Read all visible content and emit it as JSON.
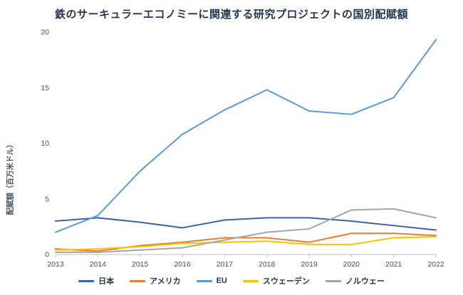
{
  "colors": {
    "background": "#ffffff",
    "title_text": "#24364f",
    "axis_text": "#44546A",
    "axis_line": "#bfbfbf"
  },
  "chart_data": {
    "type": "line",
    "title": "鉄のサーキュラーエコノミーに関連する研究プロジェクトの国別配賦額",
    "ylabel": "配賦額（百万米ドル）",
    "xlabel": "",
    "categories": [
      "2013",
      "2014",
      "2015",
      "2016",
      "2017",
      "2018",
      "2019",
      "2020",
      "2021",
      "2022"
    ],
    "ylim": [
      0,
      20
    ],
    "yticks": [
      0,
      5,
      10,
      15,
      20
    ],
    "grid": false,
    "legend_position": "bottom",
    "series": [
      {
        "name": "日本",
        "color": "#3a62ad",
        "values": [
          3.0,
          3.3,
          2.9,
          2.4,
          3.1,
          3.3,
          3.3,
          3.0,
          2.6,
          2.2
        ]
      },
      {
        "name": "アメリカ",
        "color": "#ED7D31",
        "values": [
          0.5,
          0.3,
          0.8,
          1.1,
          1.5,
          1.5,
          1.1,
          1.9,
          1.9,
          1.7
        ]
      },
      {
        "name": "EU",
        "color": "#5B9BD5",
        "values": [
          2.0,
          3.5,
          7.5,
          10.8,
          13.0,
          14.8,
          12.9,
          12.6,
          14.1,
          19.3
        ]
      },
      {
        "name": "スウェーデン",
        "color": "#FFC000",
        "values": [
          0.4,
          0.5,
          0.7,
          1.0,
          1.1,
          1.2,
          0.9,
          0.9,
          1.5,
          1.6
        ]
      },
      {
        "name": "ノルウェー",
        "color": "#A5A5A5",
        "values": [
          0.2,
          0.2,
          0.4,
          0.6,
          1.3,
          2.0,
          2.3,
          4.0,
          4.1,
          3.3
        ]
      }
    ]
  }
}
